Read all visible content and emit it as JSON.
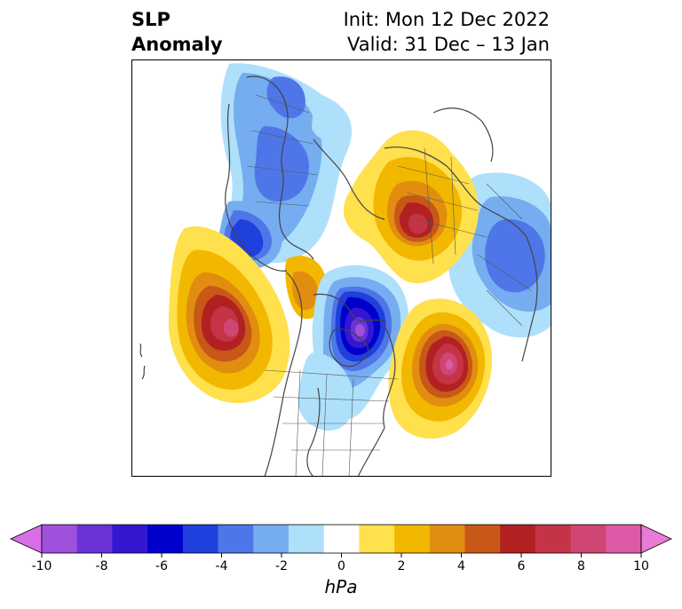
{
  "title": {
    "left_line1": "SLP",
    "left_line2": "Anomaly",
    "right_line1": "Init: Mon 12 Dec 2022",
    "right_line2": "Valid: 31 Dec – 13 Jan"
  },
  "colorbar": {
    "units": "hPa",
    "tick_labels": [
      "-10",
      "-8",
      "-6",
      "-4",
      "-2",
      "0",
      "2",
      "4",
      "6",
      "8",
      "10"
    ],
    "level_colors": [
      "#d86fe8",
      "#9f50dc",
      "#6a33d8",
      "#3417cf",
      "#0000cd",
      "#2040dd",
      "#4f76e8",
      "#75adf0",
      "#aee0fb",
      "#ffffff",
      "#ffe04d",
      "#f2b800",
      "#e18e10",
      "#c85818",
      "#b22122",
      "#c43346",
      "#cf4574",
      "#dc5aa6",
      "#e97ad8"
    ],
    "extend": "both"
  },
  "map": {
    "projection": "north-polar-stereographic",
    "anomaly_centers": [
      {
        "name": "gulf-of-alaska-high",
        "value": 9
      },
      {
        "name": "hudson-bay-low",
        "value": -8
      },
      {
        "name": "north-atlantic-high",
        "value": 9
      },
      {
        "name": "siberia-high",
        "value": 7
      },
      {
        "name": "europe-low",
        "value": -4
      },
      {
        "name": "east-asia-low",
        "value": -4
      }
    ]
  }
}
